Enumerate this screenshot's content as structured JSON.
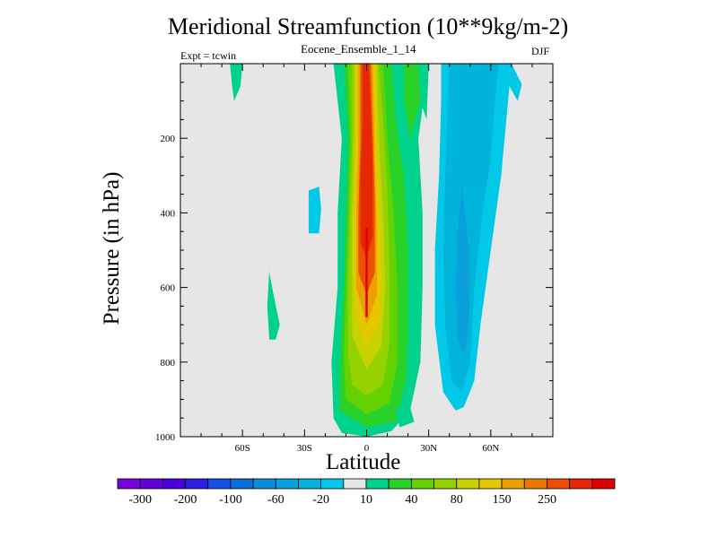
{
  "chart_data": {
    "type": "contour",
    "title": "Meridional Streamfunction (10**9kg/m-2)",
    "subtitle": "Eocene_Ensemble_1_14",
    "left_label": "Expt = tcwin",
    "right_label": "DJF",
    "xlabel": "Latitude",
    "ylabel": "Pressure (in hPa)",
    "xlim": [
      -90,
      90
    ],
    "ylim": [
      1000,
      0
    ],
    "x_ticks": [
      {
        "value": -60,
        "label": "60S"
      },
      {
        "value": -30,
        "label": "30S"
      },
      {
        "value": 0,
        "label": "0"
      },
      {
        "value": 30,
        "label": "30N"
      },
      {
        "value": 60,
        "label": "60N"
      }
    ],
    "y_ticks": [
      {
        "value": 200,
        "label": "200"
      },
      {
        "value": 400,
        "label": "400"
      },
      {
        "value": 600,
        "label": "600"
      },
      {
        "value": 800,
        "label": "800"
      },
      {
        "value": 1000,
        "label": "1000"
      }
    ],
    "background_color": "#e6e6e6",
    "levels": [
      -350,
      -300,
      -250,
      -200,
      -150,
      -100,
      -80,
      -60,
      -40,
      -20,
      0,
      10,
      20,
      40,
      60,
      80,
      100,
      150,
      200,
      250,
      300,
      400
    ],
    "colors": [
      "#7a00dc",
      "#6400dc",
      "#4b00dc",
      "#2d1ee6",
      "#1450e6",
      "#0a6edc",
      "#0a8cdc",
      "#0aa0dc",
      "#00b4dc",
      "#00c8e6",
      "#e6e6e6",
      "#00d28c",
      "#28d228",
      "#64d200",
      "#96d200",
      "#c8d200",
      "#e6c800",
      "#eba000",
      "#eb7800",
      "#eb5000",
      "#e62800",
      "#e10000"
    ],
    "colorbar_labels": [
      {
        "after_box": 1,
        "label": "-300"
      },
      {
        "after_box": 3,
        "label": "-200"
      },
      {
        "after_box": 5,
        "label": "-100"
      },
      {
        "after_box": 7,
        "label": "-60"
      },
      {
        "after_box": 9,
        "label": "-20"
      },
      {
        "after_box": 11,
        "label": "10"
      },
      {
        "after_box": 13,
        "label": "40"
      },
      {
        "after_box": 15,
        "label": "80"
      },
      {
        "after_box": 17,
        "label": "150"
      },
      {
        "after_box": 19,
        "label": "250"
      }
    ],
    "features": [
      {
        "name": "hadley-cell-positive",
        "level_index": 11,
        "center_lat": 0,
        "points": [
          [
            -16,
            0
          ],
          [
            -12,
            200
          ],
          [
            -14,
            400
          ],
          [
            -14,
            600
          ],
          [
            -17,
            800
          ],
          [
            -16,
            950
          ],
          [
            -12,
            990
          ],
          [
            0,
            1000
          ],
          [
            12,
            985
          ],
          [
            21,
            930
          ],
          [
            26,
            800
          ],
          [
            27,
            600
          ],
          [
            27,
            400
          ],
          [
            25,
            200
          ],
          [
            30,
            0
          ]
        ]
      },
      {
        "name": "hadley-cell-positive",
        "level_index": 12,
        "points": [
          [
            -11,
            0
          ],
          [
            -9,
            200
          ],
          [
            -10,
            400
          ],
          [
            -11,
            600
          ],
          [
            -13,
            800
          ],
          [
            -13,
            930
          ],
          [
            0,
            975
          ],
          [
            14,
            960
          ],
          [
            19,
            850
          ],
          [
            20,
            700
          ],
          [
            20,
            500
          ],
          [
            18,
            300
          ],
          [
            14,
            150
          ],
          [
            12,
            0
          ]
        ]
      },
      {
        "name": "hadley-cell-positive",
        "level_index": 13,
        "points": [
          [
            -9,
            0
          ],
          [
            -8,
            200
          ],
          [
            -9,
            400
          ],
          [
            -10,
            600
          ],
          [
            -11,
            800
          ],
          [
            -10,
            900
          ],
          [
            0,
            940
          ],
          [
            11,
            910
          ],
          [
            15,
            800
          ],
          [
            15,
            600
          ],
          [
            13,
            400
          ],
          [
            10,
            200
          ],
          [
            8,
            0
          ]
        ]
      },
      {
        "name": "hadley-cell-positive",
        "level_index": 14,
        "points": [
          [
            -7,
            0
          ],
          [
            -7,
            200
          ],
          [
            -8,
            400
          ],
          [
            -9,
            600
          ],
          [
            -9,
            780
          ],
          [
            -7,
            860
          ],
          [
            0,
            890
          ],
          [
            8,
            860
          ],
          [
            11,
            750
          ],
          [
            11,
            550
          ],
          [
            10,
            350
          ],
          [
            8,
            150
          ],
          [
            6,
            0
          ]
        ]
      },
      {
        "name": "hadley-cell-positive",
        "level_index": 15,
        "points": [
          [
            -6,
            0
          ],
          [
            -6,
            200
          ],
          [
            -7,
            400
          ],
          [
            -7,
            600
          ],
          [
            -7,
            730
          ],
          [
            0,
            820
          ],
          [
            7,
            760
          ],
          [
            9,
            600
          ],
          [
            8,
            400
          ],
          [
            6,
            200
          ],
          [
            5,
            0
          ]
        ]
      },
      {
        "name": "hadley-cell-positive",
        "level_index": 16,
        "points": [
          [
            -5,
            0
          ],
          [
            -5,
            200
          ],
          [
            -6,
            400
          ],
          [
            -6,
            600
          ],
          [
            -5,
            680
          ],
          [
            0,
            760
          ],
          [
            6,
            700
          ],
          [
            7,
            550
          ],
          [
            6,
            380
          ],
          [
            5,
            180
          ],
          [
            4,
            0
          ]
        ]
      },
      {
        "name": "hadley-cell-positive",
        "level_index": 17,
        "points": [
          [
            -4,
            0
          ],
          [
            -4,
            200
          ],
          [
            -5,
            400
          ],
          [
            -5,
            600
          ],
          [
            0,
            700
          ],
          [
            5,
            620
          ],
          [
            5,
            450
          ],
          [
            4,
            250
          ],
          [
            3,
            0
          ]
        ]
      },
      {
        "name": "hadley-cell-positive",
        "level_index": 19,
        "points": [
          [
            -3,
            0
          ],
          [
            -3,
            200
          ],
          [
            -4,
            400
          ],
          [
            -4,
            560
          ],
          [
            0,
            620
          ],
          [
            4,
            560
          ],
          [
            4,
            380
          ],
          [
            3,
            180
          ],
          [
            2,
            0
          ]
        ]
      },
      {
        "name": "hadley-cell-positive",
        "level_index": 20,
        "points": [
          [
            -2,
            0
          ],
          [
            -2,
            150
          ],
          [
            -3,
            300
          ],
          [
            -3,
            480
          ],
          [
            0,
            520
          ],
          [
            3,
            460
          ],
          [
            3,
            300
          ],
          [
            2,
            120
          ],
          [
            1,
            0
          ]
        ]
      },
      {
        "name": "hadley-cell-max",
        "level_index": 21,
        "points": [
          [
            -0.5,
            440
          ],
          [
            0.5,
            440
          ],
          [
            0.5,
            680
          ],
          [
            -0.5,
            680
          ]
        ]
      },
      {
        "name": "ferrel-cell-negative",
        "level_index": 9,
        "points": [
          [
            36,
            0
          ],
          [
            70,
            0
          ],
          [
            75,
            55
          ],
          [
            73,
            100
          ],
          [
            69,
            60
          ],
          [
            65,
            300
          ],
          [
            60,
            500
          ],
          [
            55,
            700
          ],
          [
            52,
            850
          ],
          [
            47,
            920
          ],
          [
            43,
            930
          ],
          [
            37,
            880
          ],
          [
            33,
            700
          ],
          [
            33,
            500
          ],
          [
            35,
            300
          ],
          [
            36,
            100
          ]
        ]
      },
      {
        "name": "ferrel-cell-negative",
        "level_index": 8,
        "points": [
          [
            40,
            0
          ],
          [
            64,
            0
          ],
          [
            62,
            100
          ],
          [
            60,
            250
          ],
          [
            56,
            400
          ],
          [
            52,
            600
          ],
          [
            50,
            800
          ],
          [
            46,
            880
          ],
          [
            41,
            850
          ],
          [
            38,
            700
          ],
          [
            37,
            500
          ],
          [
            38,
            300
          ],
          [
            39,
            150
          ]
        ]
      },
      {
        "name": "ferrel-cell-negative",
        "level_index": 7,
        "points": [
          [
            46,
            320
          ],
          [
            49,
            480
          ],
          [
            50,
            580
          ],
          [
            49,
            720
          ],
          [
            47,
            780
          ],
          [
            44,
            740
          ],
          [
            43,
            600
          ],
          [
            44,
            460
          ]
        ]
      },
      {
        "name": "upper-positive-jet",
        "level_index": 12,
        "points": [
          [
            18,
            0
          ],
          [
            30,
            0
          ],
          [
            26,
            100
          ],
          [
            21,
            200
          ],
          [
            20,
            300
          ],
          [
            21,
            200
          ],
          [
            18,
            100
          ]
        ]
      },
      {
        "name": "upper-positive-jet",
        "level_index": 11,
        "points": [
          [
            25,
            0
          ],
          [
            30,
            0
          ],
          [
            29,
            150
          ],
          [
            26,
            100
          ]
        ]
      },
      {
        "name": "high-lat-upper-positive",
        "level_index": 11,
        "points": [
          [
            -66,
            0
          ],
          [
            -60,
            0
          ],
          [
            -61,
            60
          ],
          [
            -64,
            100
          ],
          [
            -65,
            60
          ]
        ]
      },
      {
        "name": "subtropical-negative",
        "level_index": 9,
        "points": [
          [
            -28,
            340
          ],
          [
            -23,
            330
          ],
          [
            -22,
            390
          ],
          [
            -23,
            455
          ],
          [
            -28,
            455
          ],
          [
            -28,
            400
          ]
        ]
      },
      {
        "name": "midlat-positive",
        "level_index": 11,
        "points": [
          [
            -47,
            560
          ],
          [
            -45,
            620
          ],
          [
            -42,
            700
          ],
          [
            -44,
            740
          ],
          [
            -47,
            740
          ],
          [
            -48,
            650
          ],
          [
            -47,
            550
          ]
        ]
      },
      {
        "name": "surface-positive-edge",
        "level_index": 11,
        "points": [
          [
            14,
            930
          ],
          [
            20,
            900
          ],
          [
            23,
            960
          ],
          [
            16,
            975
          ]
        ]
      }
    ]
  }
}
